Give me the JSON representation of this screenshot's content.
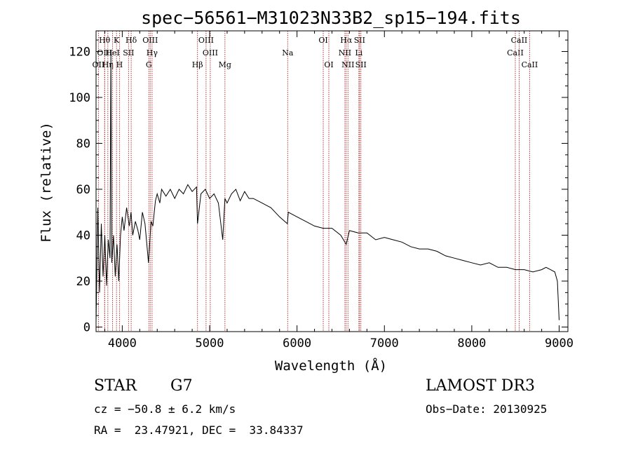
{
  "chart_data": {
    "type": "line",
    "title": "spec−56561−M31023N33B2_sp15−194.fits",
    "xlabel": "Wavelength (Å)",
    "ylabel": "Flux (relative)",
    "xlim": [
      3700,
      9100
    ],
    "ylim": [
      -2,
      129
    ],
    "xticks": [
      4000,
      5000,
      6000,
      7000,
      8000,
      9000
    ],
    "yticks": [
      0,
      20,
      40,
      60,
      80,
      100,
      120
    ],
    "series": [
      {
        "name": "flux",
        "x": [
          3700,
          3720,
          3740,
          3760,
          3780,
          3800,
          3820,
          3840,
          3860,
          3870,
          3880,
          3900,
          3920,
          3940,
          3960,
          3980,
          4000,
          4020,
          4050,
          4080,
          4100,
          4120,
          4150,
          4180,
          4200,
          4230,
          4260,
          4300,
          4330,
          4350,
          4380,
          4400,
          4430,
          4450,
          4500,
          4550,
          4600,
          4650,
          4700,
          4750,
          4800,
          4850,
          4861,
          4900,
          4950,
          5000,
          5050,
          5100,
          5150,
          5175,
          5200,
          5250,
          5300,
          5350,
          5400,
          5450,
          5500,
          5600,
          5700,
          5800,
          5890,
          5900,
          6000,
          6100,
          6200,
          6300,
          6400,
          6500,
          6563,
          6600,
          6700,
          6800,
          6900,
          7000,
          7100,
          7200,
          7300,
          7400,
          7500,
          7600,
          7700,
          7800,
          7900,
          8000,
          8100,
          8200,
          8300,
          8400,
          8500,
          8600,
          8700,
          8800,
          8850,
          8900,
          8950,
          8980,
          9000
        ],
        "y": [
          2,
          52,
          15,
          45,
          22,
          40,
          18,
          38,
          30,
          120,
          28,
          40,
          22,
          36,
          20,
          40,
          48,
          42,
          52,
          44,
          50,
          40,
          46,
          42,
          38,
          50,
          45,
          28,
          46,
          44,
          55,
          58,
          54,
          60,
          57,
          60,
          56,
          60,
          58,
          62,
          59,
          61,
          45,
          58,
          60,
          56,
          58,
          54,
          38,
          56,
          54,
          58,
          60,
          55,
          59,
          56,
          56,
          54,
          52,
          48,
          45,
          50,
          48,
          46,
          44,
          43,
          43,
          40,
          36,
          42,
          41,
          41,
          38,
          39,
          38,
          37,
          35,
          34,
          34,
          33,
          31,
          30,
          29,
          28,
          27,
          28,
          26,
          26,
          25,
          25,
          24,
          25,
          26,
          25,
          24,
          20,
          3
        ]
      }
    ],
    "lines": [
      {
        "label": "OII",
        "wavelength": 3727,
        "row": 3
      },
      {
        "label": "Hθ",
        "wavelength": 3798,
        "row": 1
      },
      {
        "label": "OIII",
        "wavelength": 3800,
        "row": 2
      },
      {
        "label": "Hη",
        "wavelength": 3835,
        "row": 3
      },
      {
        "label": "HeI",
        "wavelength": 3889,
        "row": 2
      },
      {
        "label": "K",
        "wavelength": 3934,
        "row": 1
      },
      {
        "label": "H",
        "wavelength": 3968,
        "row": 3
      },
      {
        "label": "SII",
        "wavelength": 4072,
        "row": 2
      },
      {
        "label": "Hδ",
        "wavelength": 4102,
        "row": 1
      },
      {
        "label": "G",
        "wavelength": 4304,
        "row": 3
      },
      {
        "label": "OIII",
        "wavelength": 4320,
        "row": 1
      },
      {
        "label": "Hγ",
        "wavelength": 4341,
        "row": 2
      },
      {
        "label": "Hβ",
        "wavelength": 4861,
        "row": 3
      },
      {
        "label": "OIII",
        "wavelength": 4959,
        "row": 1
      },
      {
        "label": "OIII",
        "wavelength": 5007,
        "row": 2
      },
      {
        "label": "Mg",
        "wavelength": 5175,
        "row": 3
      },
      {
        "label": "Na",
        "wavelength": 5893,
        "row": 2
      },
      {
        "label": "OI",
        "wavelength": 6300,
        "row": 1
      },
      {
        "label": "OI",
        "wavelength": 6364,
        "row": 3
      },
      {
        "label": "NII",
        "wavelength": 6548,
        "row": 2
      },
      {
        "label": "Hα",
        "wavelength": 6563,
        "row": 1
      },
      {
        "label": "NII",
        "wavelength": 6583,
        "row": 3
      },
      {
        "label": "SII",
        "wavelength": 6716,
        "row": 1
      },
      {
        "label": "Li",
        "wavelength": 6708,
        "row": 2
      },
      {
        "label": "SII",
        "wavelength": 6731,
        "row": 3
      },
      {
        "label": "CaII",
        "wavelength": 8498,
        "row": 2
      },
      {
        "label": "CaII",
        "wavelength": 8542,
        "row": 1
      },
      {
        "label": "CaII",
        "wavelength": 8662,
        "row": 3
      }
    ]
  },
  "info": {
    "class": "STAR",
    "subclass": "G7",
    "survey": "LAMOST DR3",
    "cz": "cz = −50.8 ± 6.2 km/s",
    "obs_date": "Obs−Date: 20130925",
    "coords": "RA =  23.47921, DEC =  33.84337"
  },
  "colors": {
    "axis": "#000000",
    "line": "#000000",
    "marker": "#b22222"
  }
}
